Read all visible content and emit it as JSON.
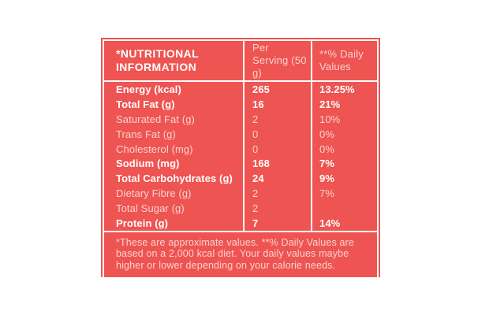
{
  "colors": {
    "red": "#EE5451",
    "text_bold": "#FFFFFF",
    "text_light": "#FAD3CF",
    "line": "#FFFFFF",
    "page_bg": "#FFFFFF"
  },
  "table": {
    "header": {
      "col1": "*Nutritional Information",
      "col2": "Per Serving (50 g)",
      "col3": "**% Daily Values"
    },
    "rows": [
      {
        "label": "Energy (kcal)",
        "per_serving": "265",
        "daily_value": "13.25%",
        "emphasis": "bold"
      },
      {
        "label": "Total Fat (g)",
        "per_serving": "16",
        "daily_value": "21%",
        "emphasis": "bold"
      },
      {
        "label": "Saturated Fat (g)",
        "per_serving": "2",
        "daily_value": "10%",
        "emphasis": "light"
      },
      {
        "label": "Trans Fat (g)",
        "per_serving": "0",
        "daily_value": "0%",
        "emphasis": "light"
      },
      {
        "label": "Cholesterol (mg)",
        "per_serving": "0",
        "daily_value": "0%",
        "emphasis": "light"
      },
      {
        "label": "Sodium (mg)",
        "per_serving": "168",
        "daily_value": "7%",
        "emphasis": "bold"
      },
      {
        "label": "Total Carbohydrates (g)",
        "per_serving": "24",
        "daily_value": "9%",
        "emphasis": "bold"
      },
      {
        "label": "Dietary Fibre (g)",
        "per_serving": "2",
        "daily_value": "7%",
        "emphasis": "light"
      },
      {
        "label": "Total Sugar (g)",
        "per_serving": "2",
        "daily_value": "",
        "emphasis": "light"
      },
      {
        "label": "Protein (g)",
        "per_serving": "7",
        "daily_value": "14%",
        "emphasis": "bold"
      }
    ],
    "footnote": "*These are approximate values. **% Daily Values are based on a 2,000 kcal diet. Your daily values maybe higher or lower depending on your calorie needs."
  }
}
